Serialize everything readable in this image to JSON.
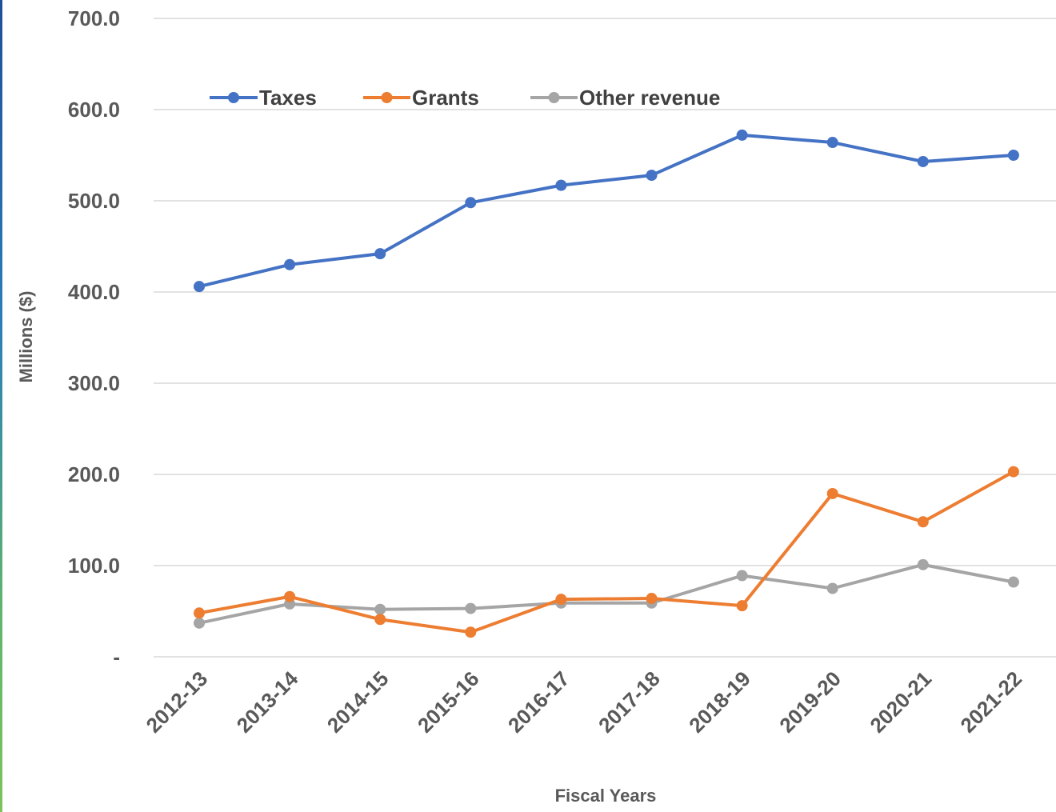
{
  "chart_data": {
    "type": "line",
    "title": "",
    "xlabel": "Fiscal Years",
    "ylabel": "Millions ($)",
    "ylim": [
      0,
      700
    ],
    "yticks": [
      0,
      100,
      200,
      300,
      400,
      500,
      600,
      700
    ],
    "ytick_labels": [
      "-",
      "100.0",
      "200.0",
      "300.0",
      "400.0",
      "500.0",
      "600.0",
      "700.0"
    ],
    "grid": true,
    "legend_position": "top",
    "categories": [
      "2012-13",
      "2013-14",
      "2014-15",
      "2015-16",
      "2016-17",
      "2017-18",
      "2018-19",
      "2019-20",
      "2020-21",
      "2021-22"
    ],
    "series": [
      {
        "name": "Taxes",
        "color": "#4472c4",
        "values": [
          406,
          430,
          442,
          498,
          517,
          528,
          572,
          564,
          543,
          550
        ]
      },
      {
        "name": "Grants",
        "color": "#ed7d31",
        "values": [
          48,
          66,
          41,
          27,
          63,
          64,
          56,
          179,
          148,
          203
        ]
      },
      {
        "name": "Other revenue",
        "color": "#a5a5a5",
        "values": [
          37,
          58,
          52,
          53,
          59,
          59,
          89,
          75,
          101,
          82
        ]
      }
    ]
  }
}
